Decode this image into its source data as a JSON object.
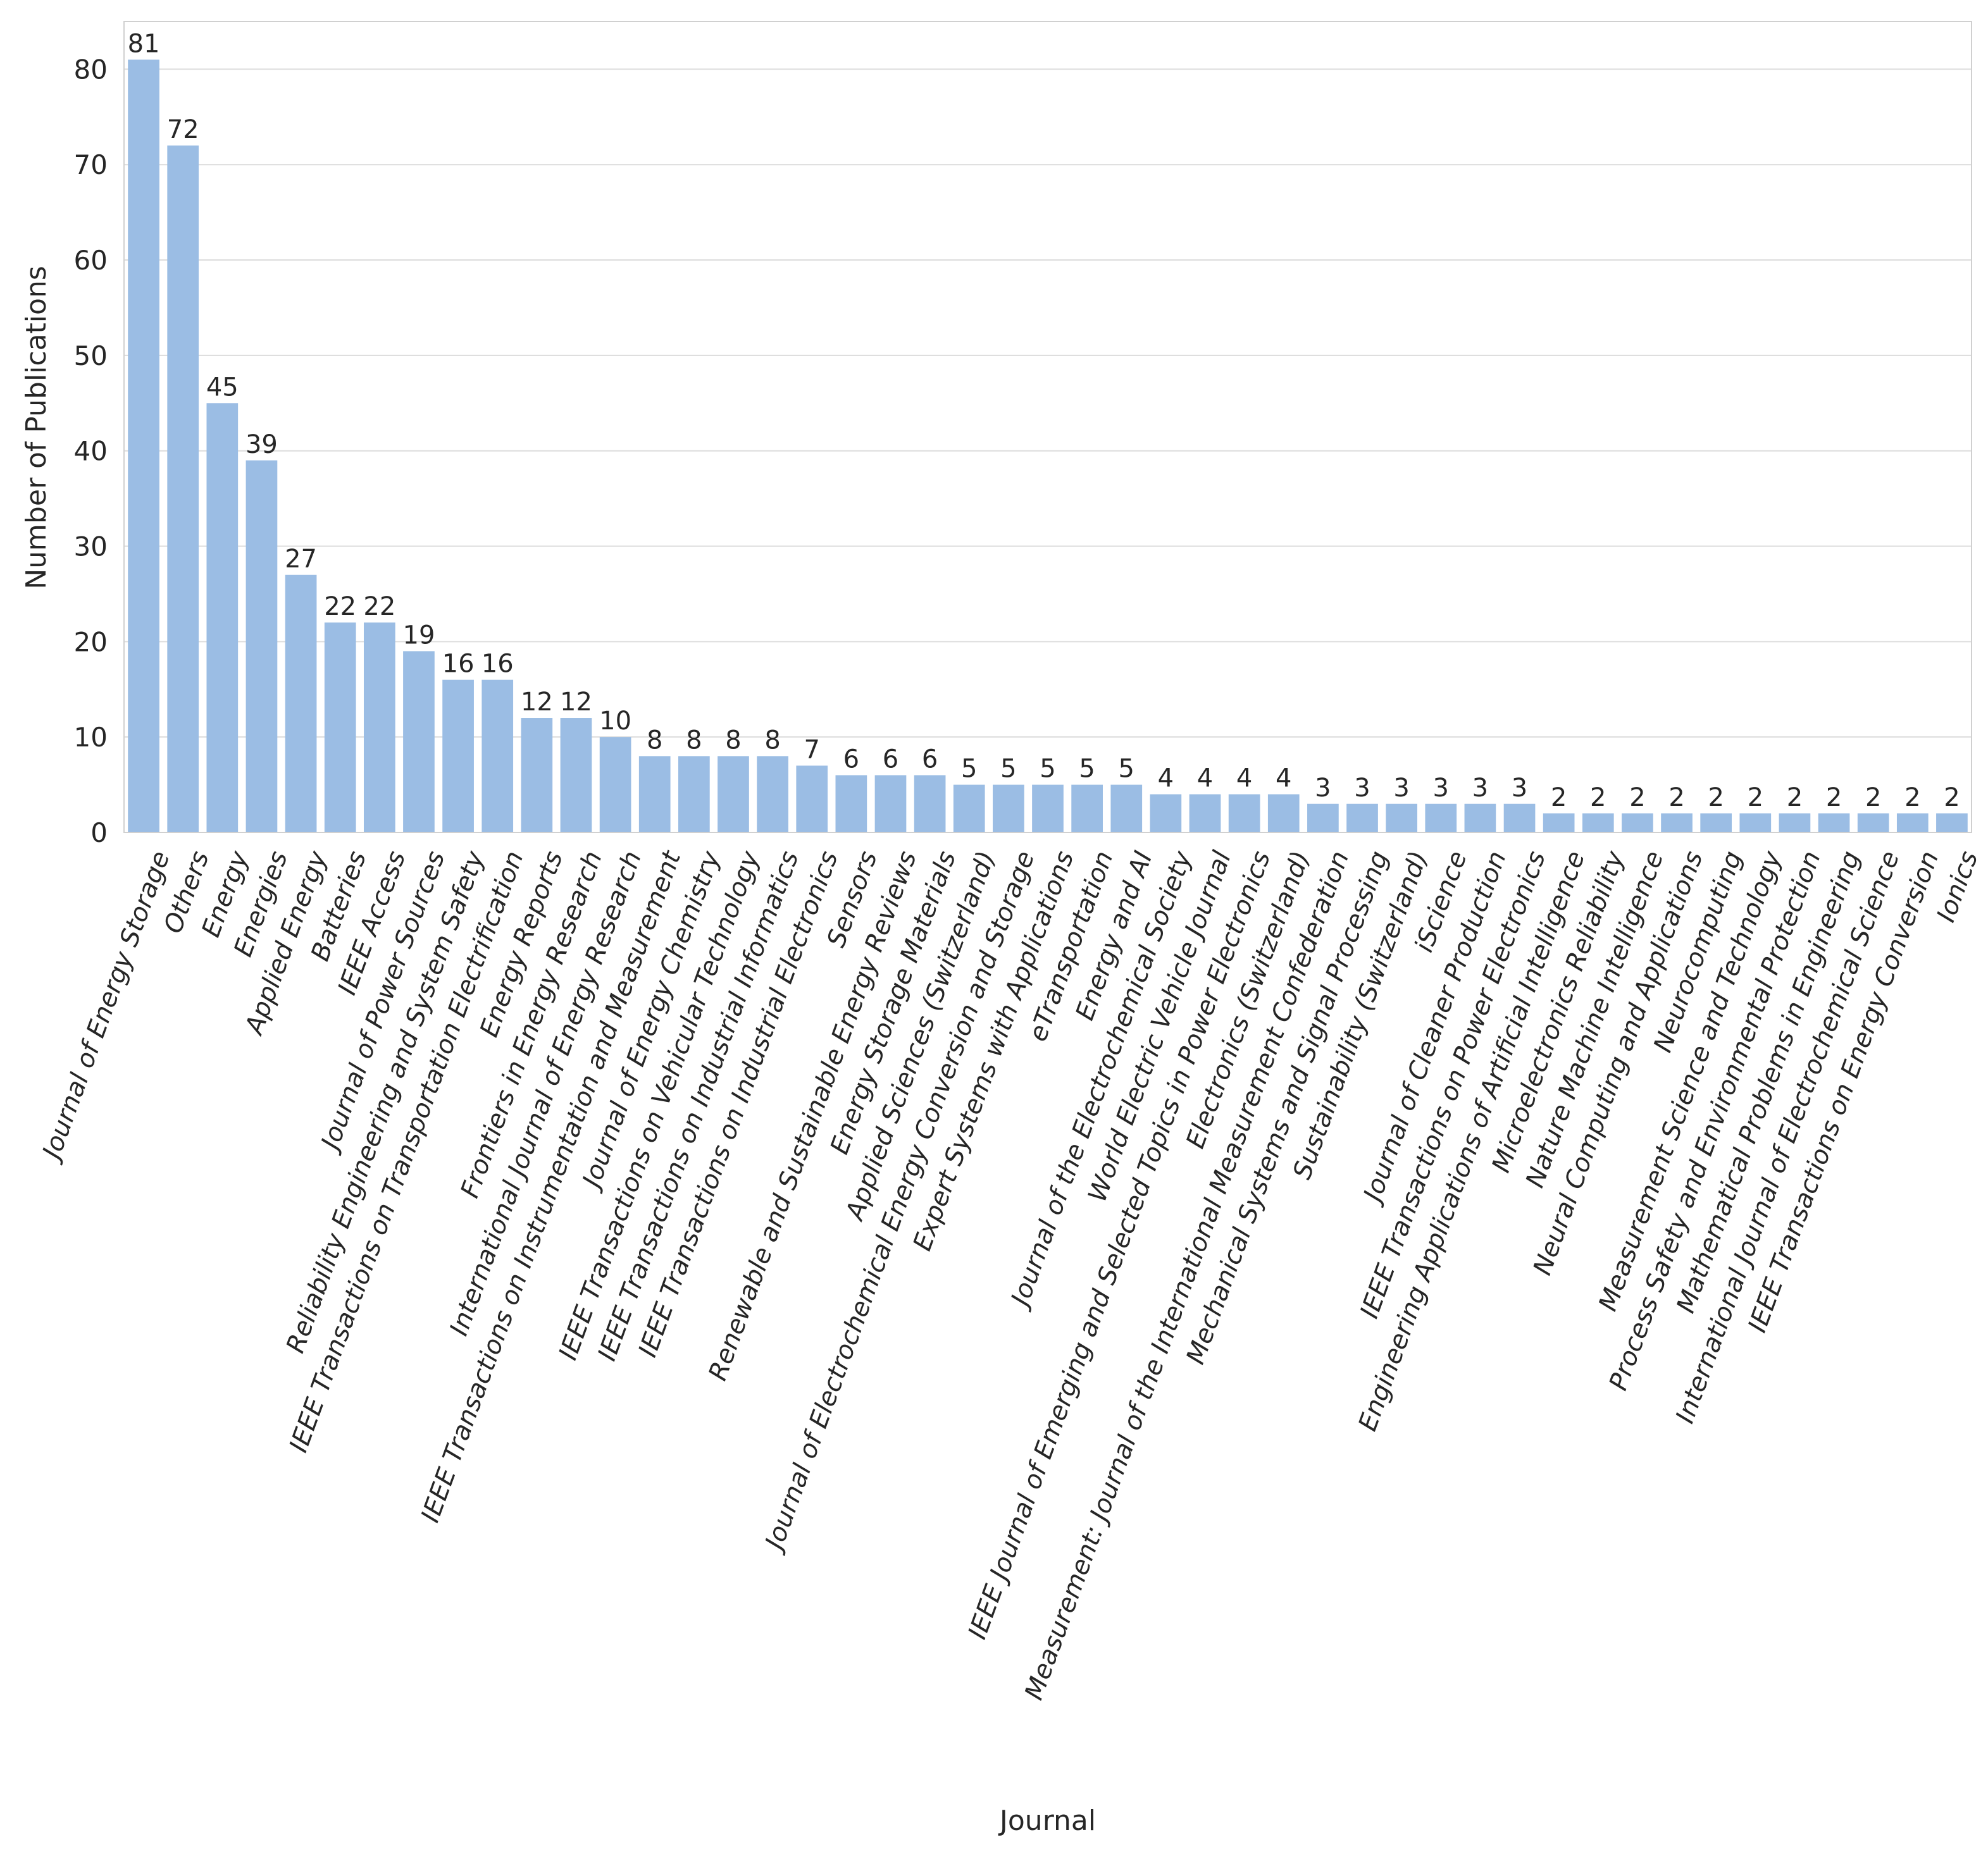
{
  "chart_data": {
    "type": "bar",
    "title": "",
    "xlabel": "Journal",
    "ylabel": "Number of Publications",
    "ylim": [
      0,
      85
    ],
    "yticks": [
      0,
      10,
      20,
      30,
      40,
      50,
      60,
      70,
      80
    ],
    "grid": true,
    "bar_color": "#9bbde4",
    "categories": [
      "Journal of Energy Storage",
      "Others",
      "Energy",
      "Energies",
      "Applied Energy",
      "Batteries",
      "IEEE Access",
      "Journal of Power Sources",
      "Reliability Engineering and System Safety",
      "IEEE Transactions on Transportation Electrification",
      "Energy Reports",
      "Frontiers in Energy Research",
      "International Journal of Energy Research",
      "IEEE Transactions on Instrumentation and Measurement",
      "Journal of Energy Chemistry",
      "IEEE Transactions on Vehicular Technology",
      "IEEE Transactions on Industrial Informatics",
      "IEEE Transactions on Industrial Electronics",
      "Sensors",
      "Renewable and Sustainable Energy Reviews",
      "Energy Storage Materials",
      "Applied Sciences (Switzerland)",
      "Journal of Electrochemical Energy Conversion and Storage",
      "Expert Systems with Applications",
      "eTransportation",
      "Energy and AI",
      "Journal of the Electrochemical Society",
      "World Electric Vehicle Journal",
      "IEEE Journal of Emerging and Selected Topics in Power Electronics",
      "Electronics (Switzerland)",
      "Measurement: Journal of the International Measurement Confederation",
      "Mechanical Systems and Signal Processing",
      "Sustainability (Switzerland)",
      "iScience",
      "Journal of Cleaner Production",
      "IEEE Transactions on Power Electronics",
      "Engineering Applications of Artificial Intelligence",
      "Microelectronics Reliability",
      "Nature Machine Intelligence",
      "Neural Computing and Applications",
      "Neurocomputing",
      "Measurement Science and Technology",
      "Process Safety and Environmental Protection",
      "Mathematical Problems in Engineering",
      "International Journal of Electrochemical Science",
      "IEEE Transactions on Energy Conversion",
      "Ionics"
    ],
    "values": [
      81,
      72,
      45,
      39,
      27,
      22,
      22,
      19,
      16,
      16,
      12,
      12,
      10,
      8,
      8,
      8,
      8,
      7,
      6,
      6,
      6,
      5,
      5,
      5,
      5,
      5,
      4,
      4,
      4,
      4,
      3,
      3,
      3,
      3,
      3,
      3,
      2,
      2,
      2,
      2,
      2,
      2,
      2,
      2,
      2,
      2,
      2
    ],
    "data_labels": [
      "81",
      "72",
      "45",
      "39",
      "27",
      "22",
      "22",
      "19",
      "16",
      "16",
      "12",
      "12",
      "10",
      "8",
      "8",
      "8",
      "8",
      "7",
      "6",
      "6",
      "6",
      "5",
      "5",
      "5",
      "5",
      "5",
      "4",
      "4",
      "4",
      "4",
      "3",
      "3",
      "3",
      "3",
      "3",
      "3",
      "2",
      "2",
      "2",
      "2",
      "2",
      "2",
      "2",
      "2",
      "2",
      "2",
      "2"
    ]
  }
}
